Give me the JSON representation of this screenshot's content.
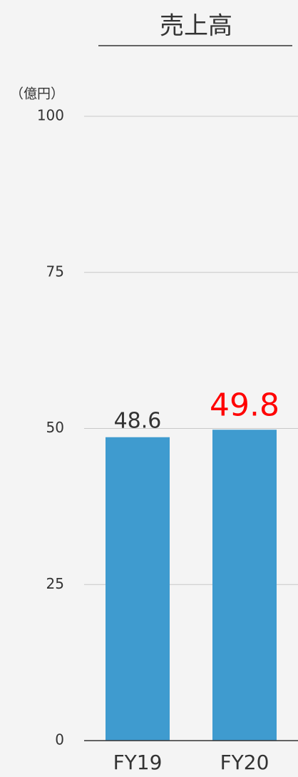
{
  "chart_data": {
    "type": "bar",
    "title": "売上高",
    "y_label": "（億円）",
    "categories": [
      "FY19",
      "FY20"
    ],
    "values": [
      48.6,
      49.8
    ],
    "color": "#3f9bcf",
    "value_label_colors": [
      "#333333",
      "#ff0000"
    ],
    "ylim": [
      0,
      100
    ],
    "yticks": [
      0,
      25,
      50,
      75,
      100
    ],
    "grid": true
  }
}
